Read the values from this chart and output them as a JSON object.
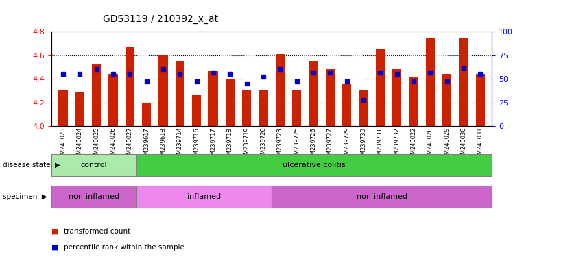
{
  "title": "GDS3119 / 210392_x_at",
  "samples": [
    "GSM240023",
    "GSM240024",
    "GSM240025",
    "GSM240026",
    "GSM240027",
    "GSM239617",
    "GSM239618",
    "GSM239714",
    "GSM239716",
    "GSM239717",
    "GSM239718",
    "GSM239719",
    "GSM239720",
    "GSM239723",
    "GSM239725",
    "GSM239726",
    "GSM239727",
    "GSM239729",
    "GSM239730",
    "GSM239731",
    "GSM239732",
    "GSM240022",
    "GSM240028",
    "GSM240029",
    "GSM240030",
    "GSM240031"
  ],
  "bar_values": [
    4.31,
    4.29,
    4.52,
    4.44,
    4.67,
    4.2,
    4.6,
    4.55,
    4.27,
    4.47,
    4.4,
    4.3,
    4.3,
    4.61,
    4.3,
    4.55,
    4.48,
    4.36,
    4.3,
    4.65,
    4.48,
    4.42,
    4.75,
    4.44,
    4.75,
    4.44
  ],
  "percentile_values": [
    55,
    55,
    60,
    55,
    55,
    47,
    60,
    55,
    47,
    57,
    55,
    45,
    52,
    60,
    47,
    57,
    57,
    47,
    28,
    57,
    55,
    47,
    57,
    47,
    62,
    55
  ],
  "ylim_left": [
    4.0,
    4.8
  ],
  "ylim_right": [
    0,
    100
  ],
  "bar_color": "#CC2200",
  "percentile_color": "#0000CC",
  "yticks_left": [
    4.0,
    4.2,
    4.4,
    4.6,
    4.8
  ],
  "yticks_right": [
    0,
    25,
    50,
    75,
    100
  ],
  "disease_state_groups": [
    {
      "label": "control",
      "start": 0,
      "end": 5,
      "color": "#AAEAAA"
    },
    {
      "label": "ulcerative colitis",
      "start": 5,
      "end": 26,
      "color": "#44CC44"
    }
  ],
  "specimen_groups": [
    {
      "label": "non-inflamed",
      "start": 0,
      "end": 5,
      "color": "#CC66CC"
    },
    {
      "label": "inflamed",
      "start": 5,
      "end": 13,
      "color": "#EE88EE"
    },
    {
      "label": "non-inflamed",
      "start": 13,
      "end": 26,
      "color": "#CC66CC"
    }
  ],
  "bg_color": "#FFFFFF"
}
